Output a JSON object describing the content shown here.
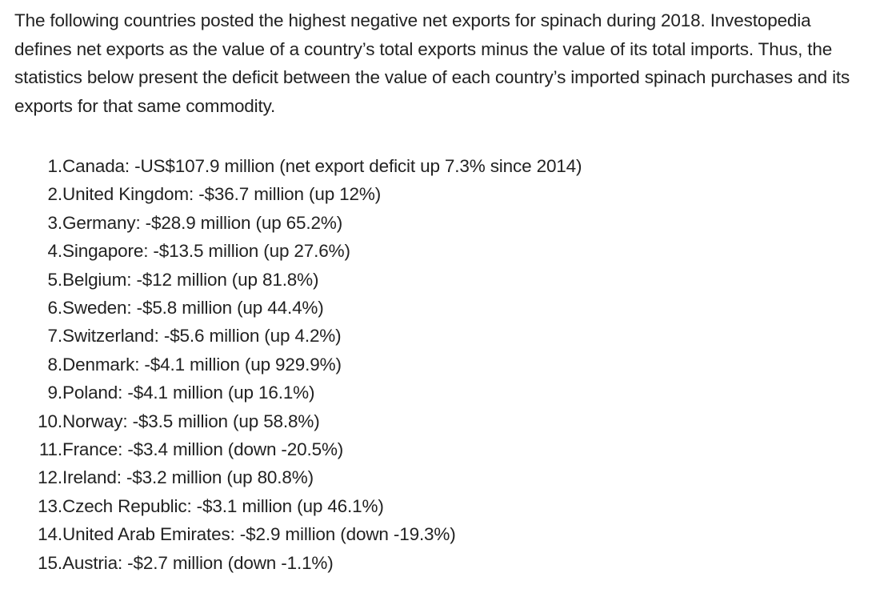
{
  "intro": "The following countries posted the highest negative net exports for spinach during 2018. Investopedia defines net exports as the value of a country’s total exports minus the value of its total imports. Thus, the statistics below present the deficit between the value of each country’s imported spinach purchases and its exports for that same commodity.",
  "items": [
    {
      "num": "1.",
      "text": "Canada: -US$107.9 million (net export deficit up 7.3% since 2014)"
    },
    {
      "num": "2.",
      "text": "United Kingdom: -$36.7 million (up 12%)"
    },
    {
      "num": "3.",
      "text": "Germany: -$28.9 million (up 65.2%)"
    },
    {
      "num": "4.",
      "text": "Singapore: -$13.5 million (up 27.6%)"
    },
    {
      "num": "5.",
      "text": "Belgium: -$12 million (up 81.8%)"
    },
    {
      "num": "6.",
      "text": "Sweden: -$5.8 million (up 44.4%)"
    },
    {
      "num": "7.",
      "text": "Switzerland: -$5.6 million (up 4.2%)"
    },
    {
      "num": "8.",
      "text": "Denmark: -$4.1 million (up 929.9%)"
    },
    {
      "num": "9.",
      "text": "Poland: -$4.1 million (up 16.1%)"
    },
    {
      "num": "10.",
      "text": "Norway: -$3.5 million (up 58.8%)"
    },
    {
      "num": "11.",
      "text": "France: -$3.4 million (down -20.5%)"
    },
    {
      "num": "12.",
      "text": "Ireland: -$3.2 million (up 80.8%)"
    },
    {
      "num": "13.",
      "text": "Czech Republic: -$3.1 million (up 46.1%)"
    },
    {
      "num": "14.",
      "text": "United Arab Emirates: -$2.9 million (down -19.3%)"
    },
    {
      "num": "15.",
      "text": "Austria: -$2.7 million (down -1.1%)"
    }
  ]
}
